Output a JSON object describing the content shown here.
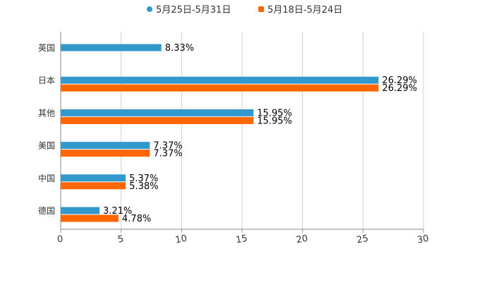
{
  "chart_data": {
    "type": "bar",
    "orientation": "horizontal",
    "categories": [
      "英国",
      "日本",
      "其他",
      "美国",
      "中国",
      "德国"
    ],
    "series": [
      {
        "name": "5月25日-5月31日",
        "color": "#3399cc",
        "values": [
          8.33,
          26.29,
          15.95,
          7.37,
          5.37,
          3.21
        ],
        "labels": [
          "8.33%",
          "26.29%",
          "15.95%",
          "7.37%",
          "5.37%",
          "3.21%"
        ]
      },
      {
        "name": "5月18日-5月24日",
        "color": "#ff6600",
        "values": [
          null,
          26.29,
          15.95,
          7.37,
          5.38,
          4.78
        ],
        "labels": [
          null,
          "26.29%",
          "15.95%",
          "7.37%",
          "5.38%",
          "4.78%"
        ]
      }
    ],
    "x_ticks": [
      "0",
      "5",
      "10",
      "15",
      "20",
      "25",
      "30"
    ],
    "xlim": [
      0,
      30
    ],
    "grid": true,
    "legend_position": "top-center"
  }
}
